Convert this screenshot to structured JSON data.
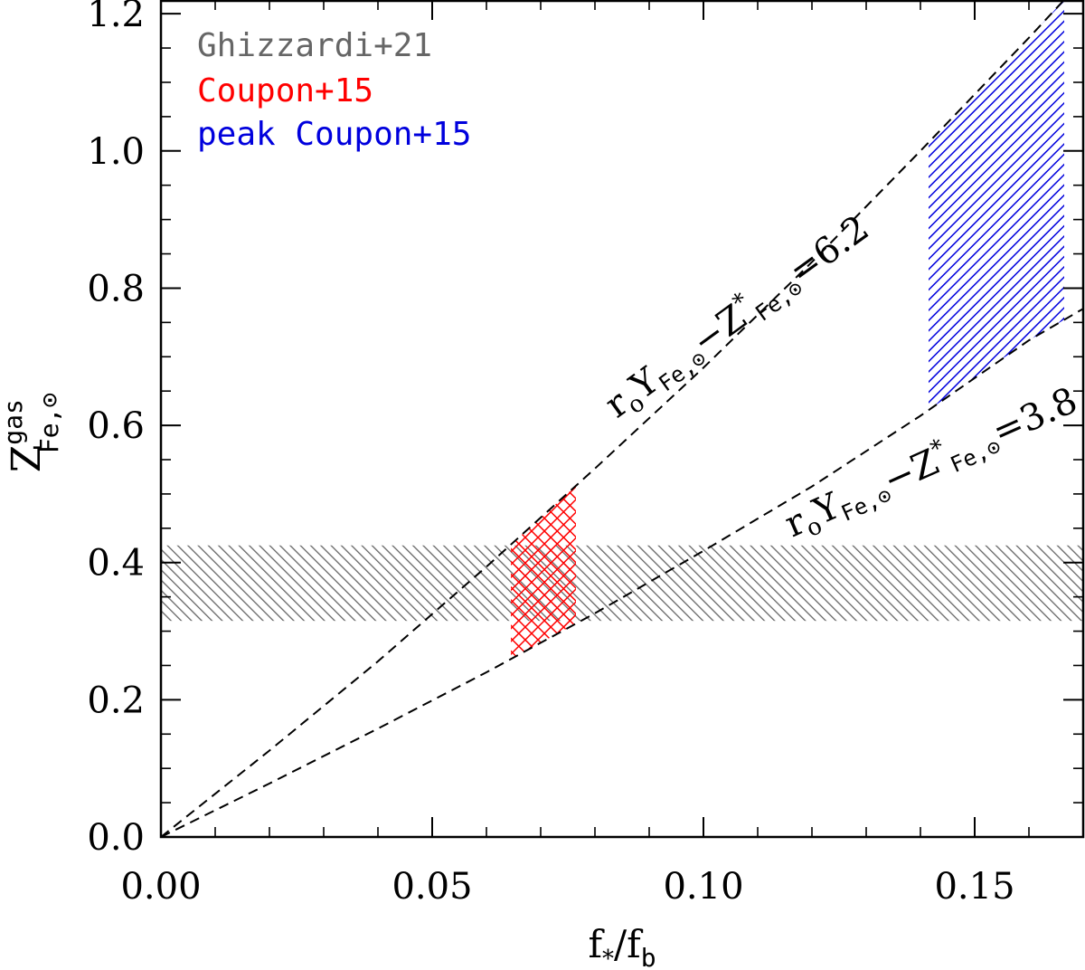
{
  "chart_data": {
    "type": "line",
    "title": "",
    "xlabel": {
      "main": "f",
      "sub1": "*",
      "mid": "/f",
      "sub2": "b"
    },
    "ylabel": {
      "main": "Z",
      "sup": "gas",
      "sub": "Fe,⊙"
    },
    "xlim": [
      0.0,
      0.17
    ],
    "ylim": [
      0.0,
      1.22
    ],
    "x_ticks": [
      0.0,
      0.05,
      0.1,
      0.15
    ],
    "x_tick_labels": [
      "0.00",
      "0.05",
      "0.10",
      "0.15"
    ],
    "y_ticks": [
      0.0,
      0.2,
      0.4,
      0.6,
      0.8,
      1.0,
      1.2
    ],
    "y_tick_labels": [
      "0.0",
      "0.2",
      "0.4",
      "0.6",
      "0.8",
      "1.0",
      "1.2"
    ],
    "grid": false,
    "legend": {
      "placement": "top-left",
      "entries": [
        {
          "label": "Ghizzardi+21",
          "color": "#666666"
        },
        {
          "label": "Coupon+15",
          "color": "#ff0000"
        },
        {
          "label": "peak Coupon+15",
          "color": "#0000dd"
        }
      ]
    },
    "series": [
      {
        "line_style": "dashed",
        "label_parts": {
          "pre": "r",
          "pre_sub": "o",
          "y": "Y",
          "y_sub": "Fe,⊙",
          "minus": "−",
          "z": "Z",
          "z_sup": "*",
          "z_sub": "Fe,⊙",
          "eq": "=6.2"
        },
        "x": [
          0.0,
          0.02,
          0.04,
          0.06,
          0.08,
          0.1,
          0.12,
          0.14,
          0.16,
          0.17
        ],
        "y": [
          0.0,
          0.126,
          0.256,
          0.394,
          0.537,
          0.684,
          0.838,
          1.0,
          1.165,
          1.25
        ]
      },
      {
        "line_style": "dashed",
        "label_parts": {
          "pre": "r",
          "pre_sub": "o",
          "y": "Y",
          "y_sub": "Fe,⊙",
          "minus": "−",
          "z": "Z",
          "z_sup": "*",
          "z_sub": "Fe,⊙",
          "eq": "=3.8"
        },
        "x": [
          0.0,
          0.02,
          0.04,
          0.06,
          0.08,
          0.1,
          0.12,
          0.14,
          0.16,
          0.17
        ],
        "y": [
          0.0,
          0.078,
          0.158,
          0.24,
          0.326,
          0.417,
          0.511,
          0.614,
          0.724,
          0.77
        ]
      }
    ],
    "bands": [
      {
        "name": "Ghizzardi+21",
        "type": "horizontal",
        "x_range": [
          0.0,
          0.17
        ],
        "y_range": [
          0.315,
          0.425
        ],
        "color": "#666666",
        "hatch": "backslash"
      },
      {
        "name": "Coupon+15",
        "type": "between-curves",
        "x_range": [
          0.0645,
          0.0765
        ],
        "color": "#ff0000",
        "hatch": "cross"
      },
      {
        "name": "peak Coupon+15",
        "type": "between-curves",
        "x_range": [
          0.1415,
          0.1665
        ],
        "color": "#0000dd",
        "hatch": "slash"
      }
    ]
  }
}
